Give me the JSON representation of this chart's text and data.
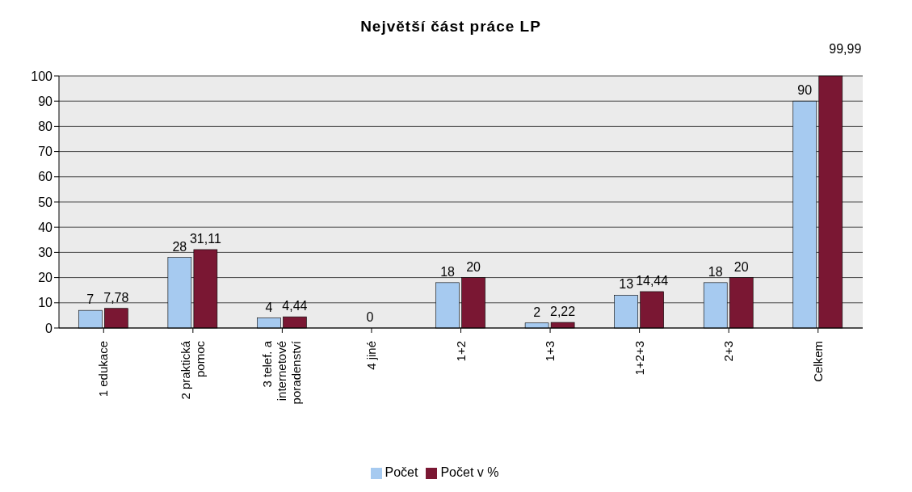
{
  "chart_data": {
    "type": "bar",
    "title": "Největší část práce LP",
    "categories": [
      "1 edukace",
      "2 praktická\npomoc",
      "3 telef. a\ninternetové\nporadenství",
      "4 jiné",
      "1+2",
      "1+3",
      "1+2+3",
      "2+3",
      "Celkem"
    ],
    "series": [
      {
        "name": "Počet",
        "color": "#a6caf0",
        "values": [
          7,
          28,
          4,
          0,
          18,
          2,
          13,
          18,
          90
        ],
        "value_labels": [
          "7",
          "28",
          "4",
          "0",
          "18",
          "2",
          "13",
          "18",
          "90"
        ]
      },
      {
        "name": "Počet v %",
        "color": "#7a1733",
        "values": [
          7.78,
          31.11,
          4.44,
          0,
          20,
          2.22,
          14.44,
          20,
          99.99
        ],
        "value_labels": [
          "7,78",
          "31,11",
          "4,44",
          null,
          "20",
          "2,22",
          "14,44",
          "20",
          "99,99"
        ]
      }
    ],
    "ylim": [
      0,
      100
    ],
    "yticks": [
      0,
      10,
      20,
      30,
      40,
      50,
      60,
      70,
      80,
      90,
      100
    ],
    "grid": "y",
    "legend": "bottom"
  }
}
